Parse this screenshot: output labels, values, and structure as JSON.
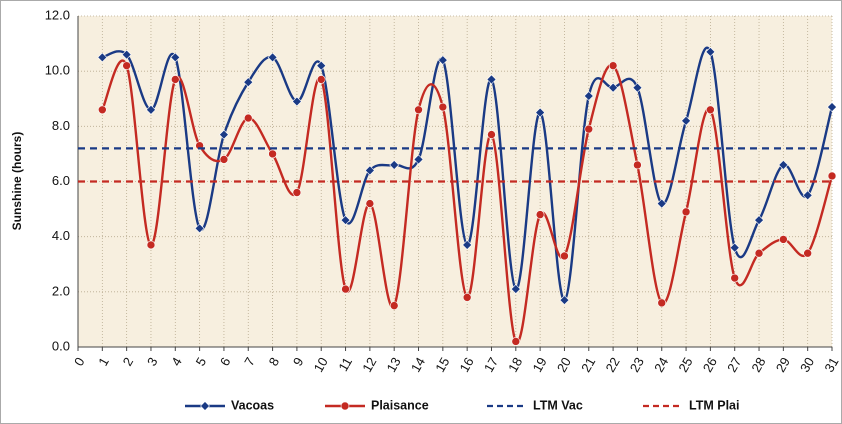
{
  "chart_data": {
    "type": "line",
    "y_label": "Sunshine (hours)",
    "x": [
      1,
      2,
      3,
      4,
      5,
      6,
      7,
      8,
      9,
      10,
      11,
      12,
      13,
      14,
      15,
      16,
      17,
      18,
      19,
      20,
      21,
      22,
      23,
      24,
      25,
      26,
      27,
      28,
      29,
      30,
      31
    ],
    "xlim": [
      0,
      31
    ],
    "xticks": [
      0,
      1,
      2,
      3,
      4,
      5,
      6,
      7,
      8,
      9,
      10,
      11,
      12,
      13,
      14,
      15,
      16,
      17,
      18,
      19,
      20,
      21,
      22,
      23,
      24,
      25,
      26,
      27,
      28,
      29,
      30,
      31
    ],
    "ylim": [
      0,
      12
    ],
    "yticks": [
      {
        "value": 0,
        "label": "0.0"
      },
      {
        "value": 2,
        "label": "2.0"
      },
      {
        "value": 4,
        "label": "4.0"
      },
      {
        "value": 6,
        "label": "6.0"
      },
      {
        "value": 8,
        "label": "8.0"
      },
      {
        "value": 10,
        "label": "10.0"
      },
      {
        "value": 12,
        "label": "12.0"
      }
    ],
    "grid": true,
    "series": [
      {
        "name": "Vacoas",
        "color": "#1a3a85",
        "marker": "diamond",
        "values": [
          10.5,
          10.6,
          8.6,
          10.5,
          4.3,
          7.7,
          9.6,
          10.5,
          8.9,
          10.2,
          4.6,
          6.4,
          6.6,
          6.8,
          10.4,
          3.7,
          9.7,
          2.1,
          8.5,
          1.7,
          9.1,
          9.4,
          9.4,
          5.2,
          8.2,
          10.7,
          3.6,
          4.6,
          6.6,
          5.5,
          8.7
        ]
      },
      {
        "name": "Plaisance",
        "color": "#c42a22",
        "marker": "circle",
        "values": [
          8.6,
          10.2,
          3.7,
          9.7,
          7.3,
          6.8,
          8.3,
          7.0,
          5.6,
          9.7,
          2.1,
          5.2,
          1.5,
          8.6,
          8.7,
          1.8,
          7.7,
          0.2,
          4.8,
          3.3,
          7.9,
          10.2,
          6.6,
          1.6,
          4.9,
          8.6,
          2.5,
          3.4,
          3.9,
          3.4,
          6.2
        ]
      },
      {
        "name": "LTM Vac",
        "color": "#1a3a85",
        "dashed": true,
        "value": 7.2
      },
      {
        "name": "LTM Plai",
        "color": "#c42a22",
        "dashed": true,
        "value": 6.0
      }
    ]
  }
}
